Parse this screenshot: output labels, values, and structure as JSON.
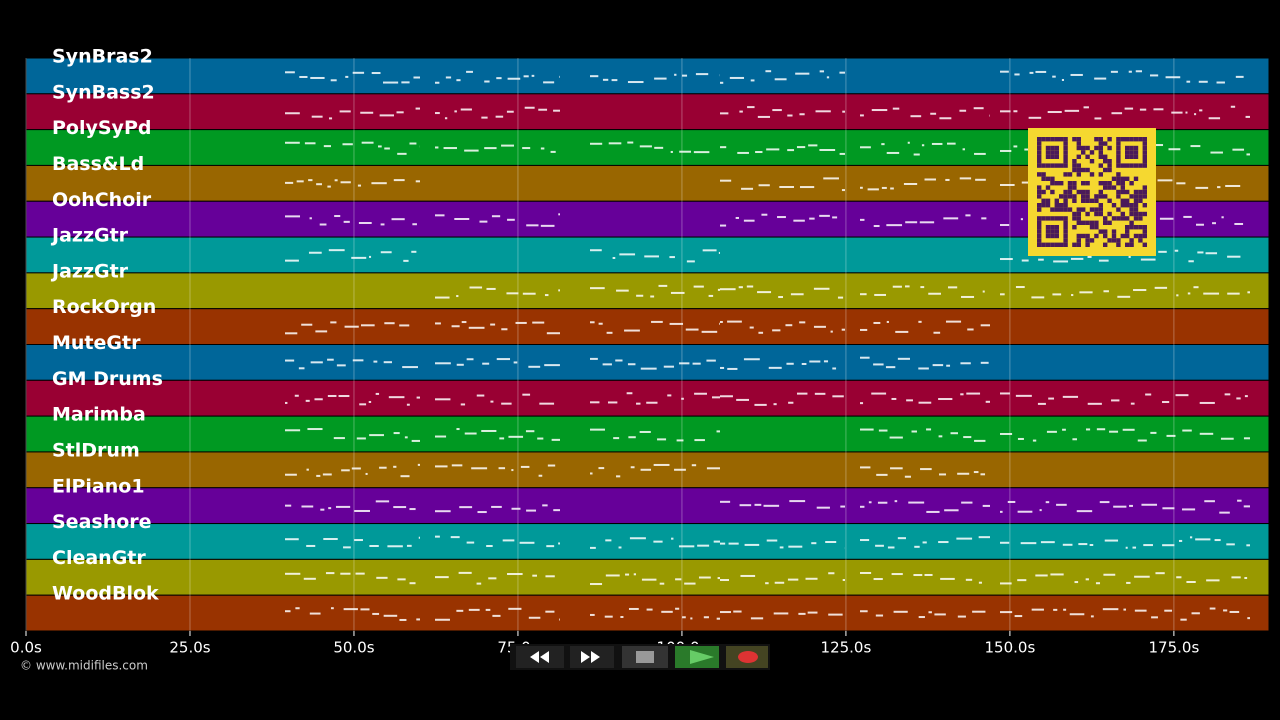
{
  "tracks": [
    {
      "name": "SynBras2",
      "color": "#006699"
    },
    {
      "name": "SynBass2",
      "color": "#990033"
    },
    {
      "name": "PolySyPd",
      "color": "#009922"
    },
    {
      "name": "Bass&Ld",
      "color": "#996600"
    },
    {
      "name": "OohChoir",
      "color": "#660099"
    },
    {
      "name": "JazzGtr",
      "color": "#009999"
    },
    {
      "name": "JazzGtr",
      "color": "#999900"
    },
    {
      "name": "RockOrgn",
      "color": "#993300"
    },
    {
      "name": "MuteGtr",
      "color": "#006699"
    },
    {
      "name": "GM Drums",
      "color": "#990033"
    },
    {
      "name": "Marimba",
      "color": "#009922"
    },
    {
      "name": "StlDrum",
      "color": "#996600"
    },
    {
      "name": "ElPiano1",
      "color": "#660099"
    },
    {
      "name": "Seashore",
      "color": "#009999"
    },
    {
      "name": "CleanGtr",
      "color": "#999900"
    },
    {
      "name": "WoodBlok",
      "color": "#993300"
    }
  ],
  "time_axis": {
    "xlim": [
      0,
      189.5
    ],
    "ticks": [
      {
        "value": 0,
        "label": "0.0s"
      },
      {
        "value": 25,
        "label": "25.0s"
      },
      {
        "value": 50,
        "label": "50.0s"
      },
      {
        "value": 75,
        "label": "75.0s"
      },
      {
        "value": 100,
        "label": "100.0s"
      },
      {
        "value": 125,
        "label": "125.0s"
      },
      {
        "value": 150,
        "label": "150.0s"
      },
      {
        "value": 175,
        "label": "175.0s"
      }
    ]
  },
  "copyright": "© www.midifiles.com"
}
